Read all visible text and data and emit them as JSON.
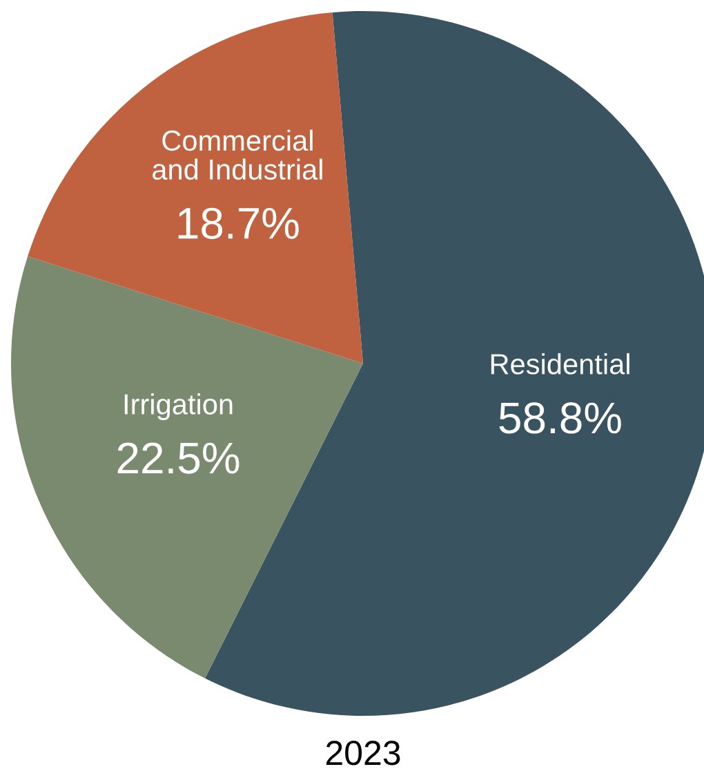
{
  "chart_data": {
    "type": "pie",
    "title": "2023",
    "categories": [
      "Residential",
      "Irrigation",
      "Commercial\nand Industrial"
    ],
    "values": [
      58.8,
      22.5,
      18.7
    ],
    "colors": [
      "#3a5361",
      "#7a8a6e",
      "#c06140"
    ],
    "value_labels": [
      "58.8%",
      "22.5%",
      "18.7%"
    ]
  }
}
